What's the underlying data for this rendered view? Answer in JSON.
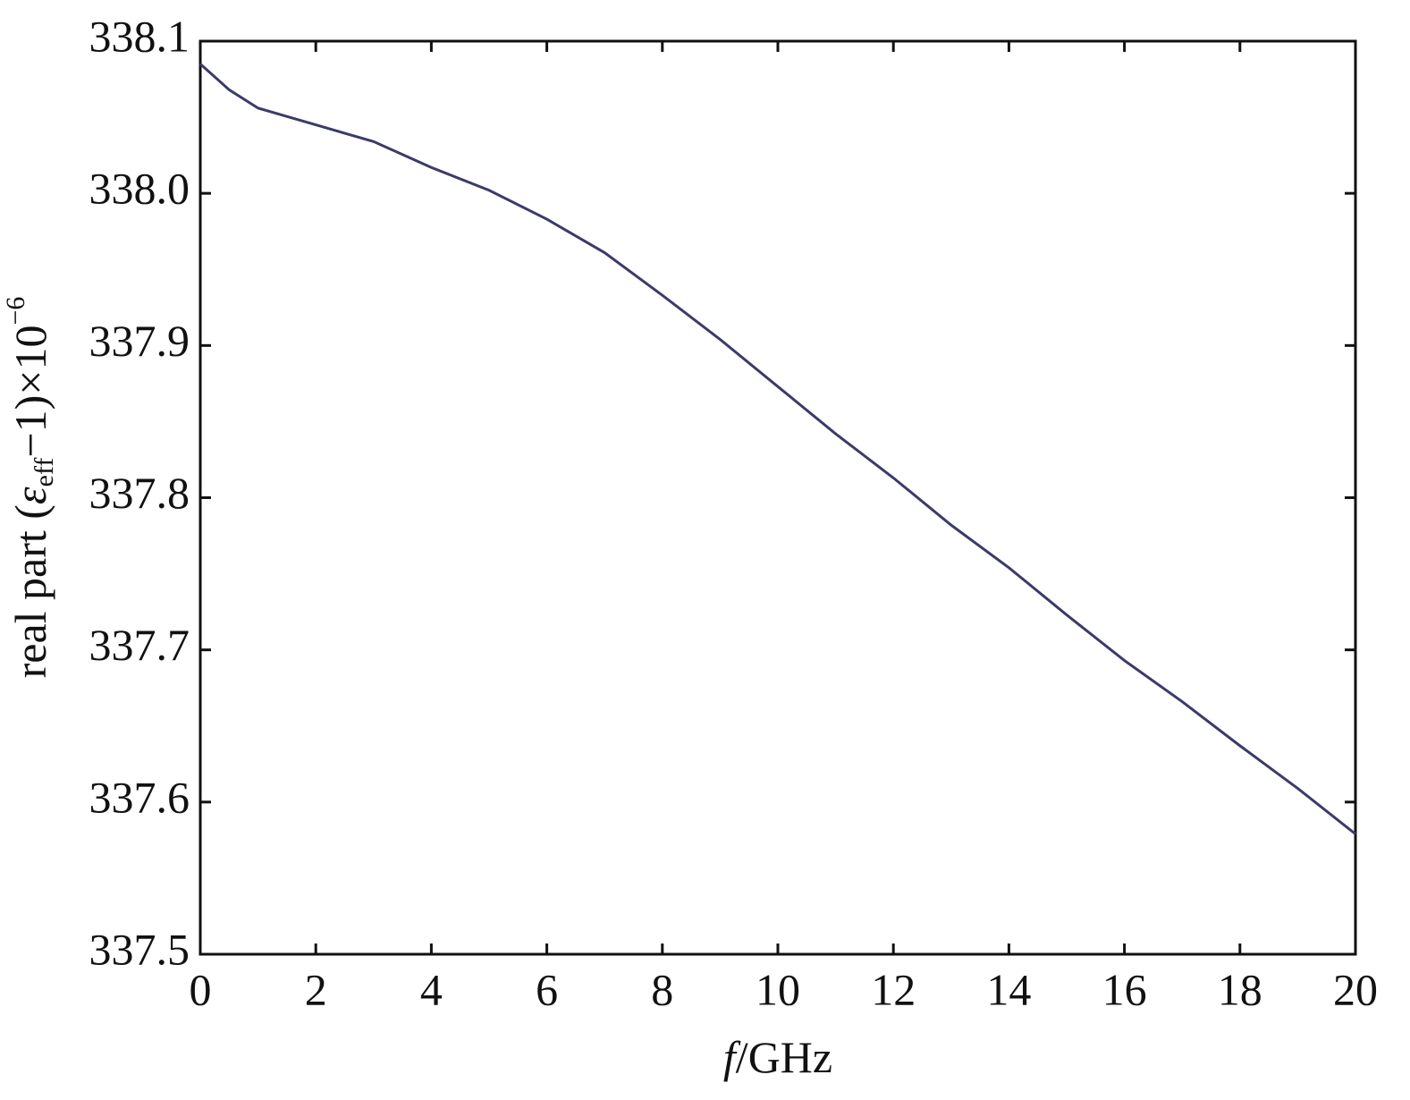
{
  "chart_data": {
    "type": "line",
    "ylabel": [
      "real part (",
      "ε",
      "eff",
      "−1)×10",
      "−6"
    ],
    "xlabel": [
      "f",
      "/GHz"
    ],
    "x": [
      0,
      0.5,
      1,
      2,
      3,
      4,
      5,
      6,
      7,
      8,
      9,
      10,
      11,
      12,
      13,
      14,
      15,
      16,
      17,
      18,
      19,
      20
    ],
    "series": [
      {
        "color": "#3b3a6b",
        "values": [
          338.085,
          338.068,
          338.056,
          338.045,
          338.034,
          338.017,
          338.002,
          337.983,
          337.961,
          337.933,
          337.904,
          337.873,
          337.842,
          337.813,
          337.782,
          337.754,
          337.723,
          337.693,
          337.666,
          337.637,
          337.609,
          337.579
        ]
      }
    ],
    "xlim": [
      0,
      20
    ],
    "xticks": [
      0,
      2,
      4,
      6,
      8,
      10,
      12,
      14,
      16,
      18,
      20
    ],
    "ylim": [
      337.5,
      338.1
    ],
    "yticks": [
      337.5,
      337.6,
      337.7,
      337.8,
      337.9,
      {
        "value": 338,
        "label": "338.0"
      },
      338.1
    ],
    "grid": false
  }
}
